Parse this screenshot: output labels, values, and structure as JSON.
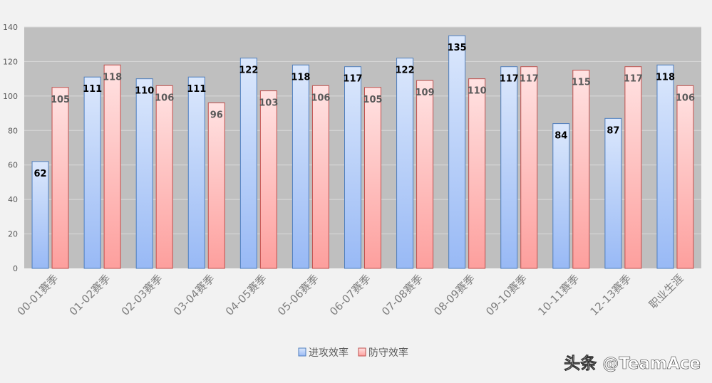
{
  "chart_data": {
    "type": "bar",
    "categories": [
      "00-01赛季",
      "01-02赛季",
      "02-03赛季",
      "03-04赛季",
      "04-05赛季",
      "05-06赛季",
      "06-07赛季",
      "07-08赛季",
      "08-09赛季",
      "09-10赛季",
      "10-11赛季",
      "12-13赛季",
      "职业生涯"
    ],
    "series": [
      {
        "name": "进攻效率",
        "values": [
          62,
          111,
          110,
          111,
          122,
          118,
          117,
          122,
          135,
          117,
          84,
          87,
          118
        ]
      },
      {
        "name": "防守效率",
        "values": [
          105,
          118,
          106,
          96,
          103,
          106,
          105,
          109,
          110,
          117,
          115,
          117,
          106
        ]
      }
    ],
    "ylim": [
      0,
      140
    ],
    "yticks": [
      0,
      20,
      40,
      60,
      80,
      100,
      120,
      140
    ],
    "grid": true,
    "legend_position": "bottom-center",
    "colors": {
      "series1_top": "#dce8fc",
      "series1_bottom": "#98b9f5",
      "series1_border": "#4f7ebd",
      "series2_top": "#ffe3e3",
      "series2_bottom": "#fd9f9d",
      "series2_border": "#c0504d",
      "plot_bg": "#bfbfbf",
      "page_bg": "#f2f2f2",
      "grid": "#d9d9d9",
      "label1": "#000000",
      "label2": "#595959"
    }
  },
  "watermark": "头条 @TeamAce"
}
